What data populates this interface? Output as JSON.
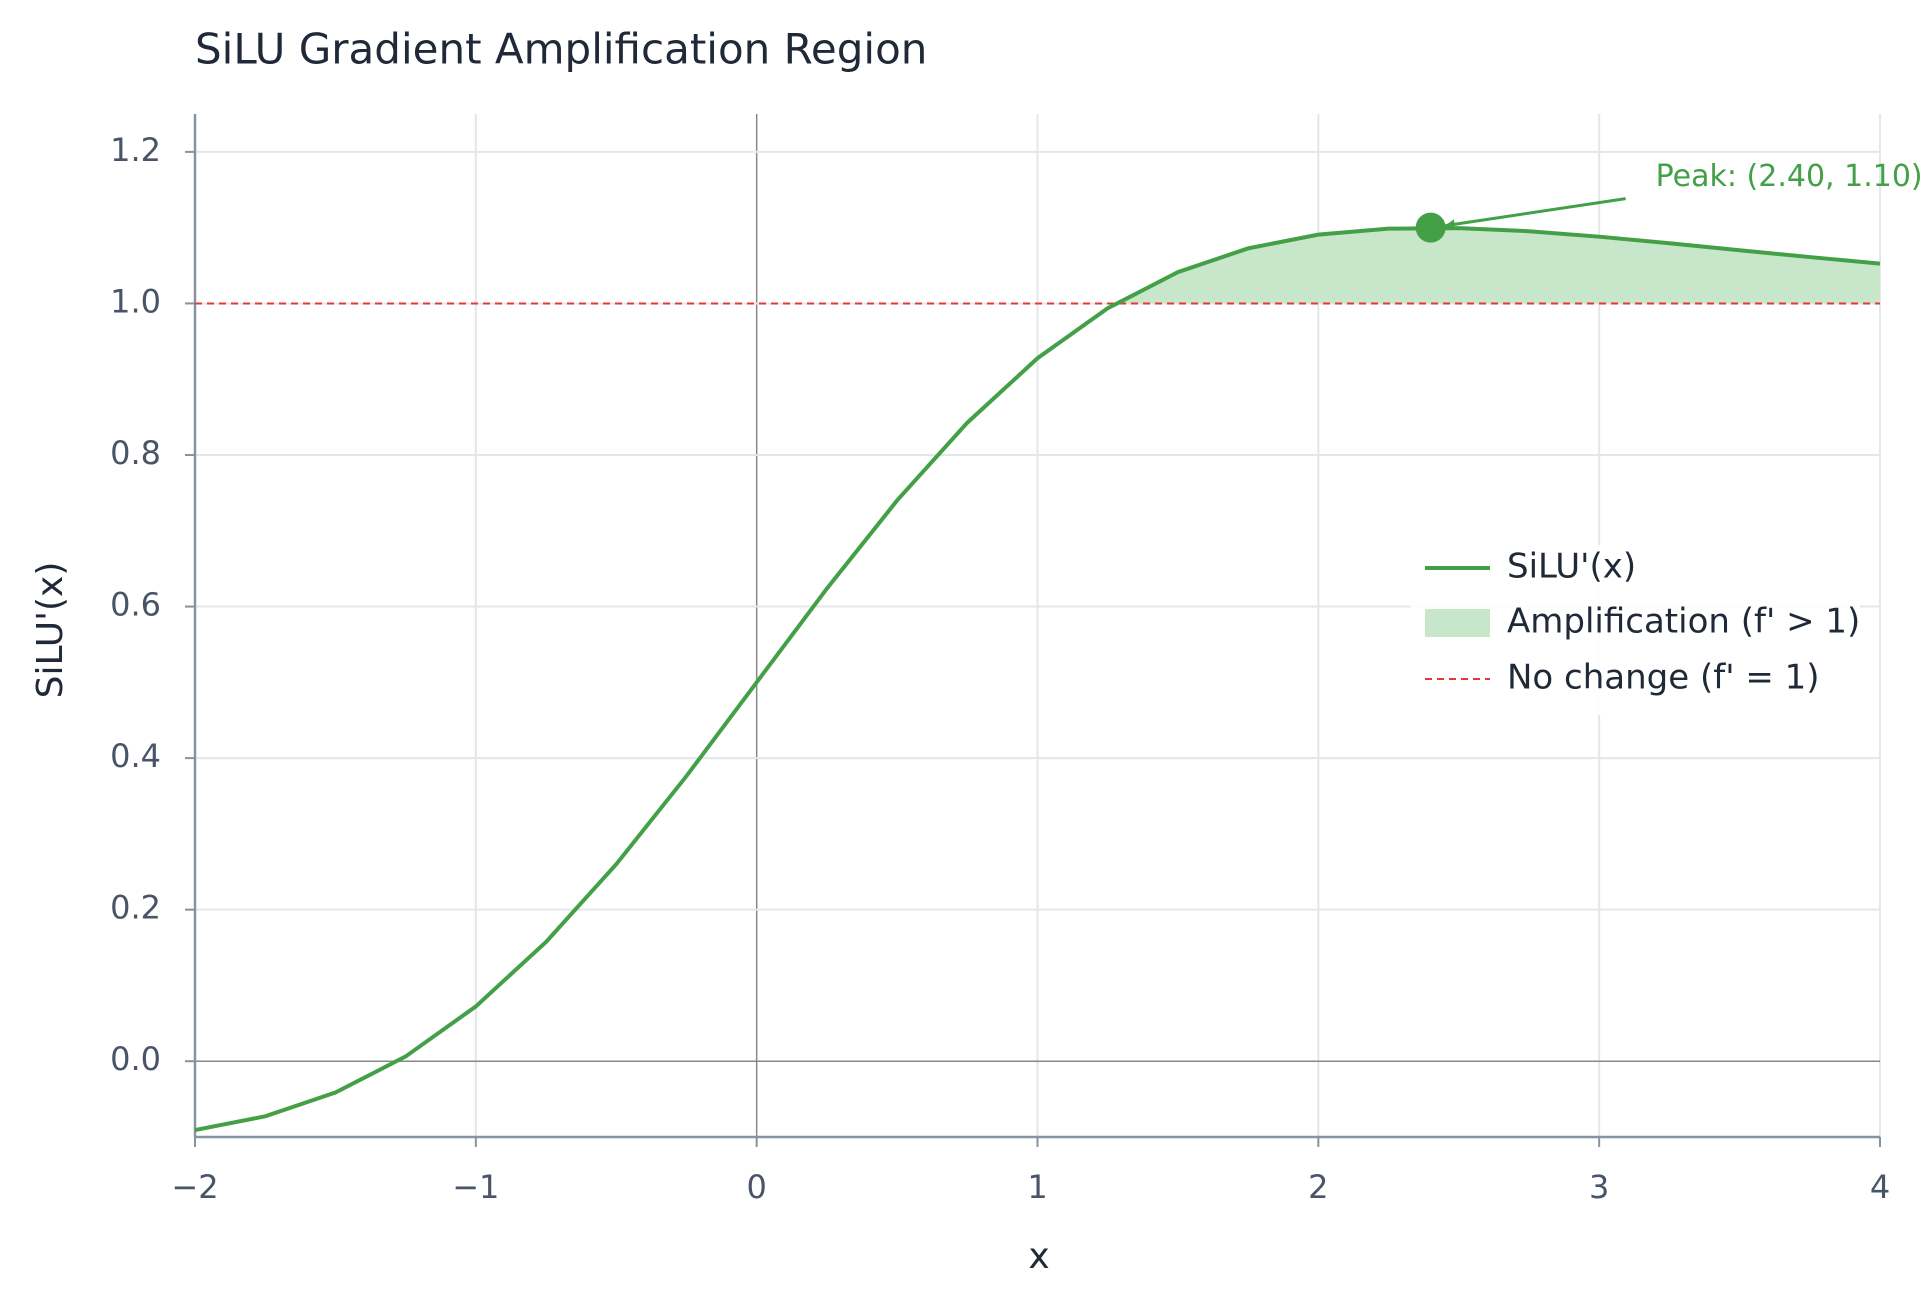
{
  "chart_data": {
    "type": "line",
    "title": "SiLU Gradient Amplification Region",
    "x_label": "x",
    "y_label": "SiLU'(x)",
    "x": [
      -2,
      -1.75,
      -1.5,
      -1.25,
      -1,
      -0.75,
      -0.5,
      -0.25,
      0,
      0.25,
      0.5,
      0.75,
      1,
      1.25,
      1.5,
      1.75,
      2,
      2.25,
      2.5,
      2.75,
      3,
      3.25,
      3.5,
      3.75,
      4
    ],
    "series": [
      {
        "name": "SiLU'(x)",
        "color": "#43a047",
        "values": [
          -0.0908,
          -0.0727,
          -0.0413,
          0.0063,
          0.0723,
          0.1574,
          0.26,
          0.3763,
          0.5,
          0.6237,
          0.74,
          0.8426,
          0.9277,
          0.9937,
          1.0413,
          1.0727,
          1.0908,
          1.0987,
          1.0994,
          1.0953,
          1.0881,
          1.0794,
          1.0702,
          1.0612,
          1.0526
        ]
      }
    ],
    "fill": {
      "name": "Amplification (f' > 1)",
      "color": "#c8e6c9"
    },
    "reference_line": {
      "name": "No change (f' = 1)",
      "value": 1,
      "color": "#e53935"
    },
    "annotation": {
      "text": "Peak: (2.40, 1.10)",
      "x": 2.4,
      "y": 1.1,
      "color": "#43a047"
    },
    "xlim": [
      -2,
      4
    ],
    "ylim": [
      -0.1,
      1.25
    ],
    "xticks": [
      {
        "value": -2,
        "label": "−2"
      },
      {
        "value": -1,
        "label": "−1"
      },
      0,
      1,
      2,
      3,
      4
    ],
    "yticks": [
      {
        "value": 0,
        "label": "0.0"
      },
      0.2,
      0.4,
      0.6,
      0.8,
      {
        "value": 1,
        "label": "1.0"
      },
      1.2
    ],
    "grid": true,
    "legend": "right"
  }
}
